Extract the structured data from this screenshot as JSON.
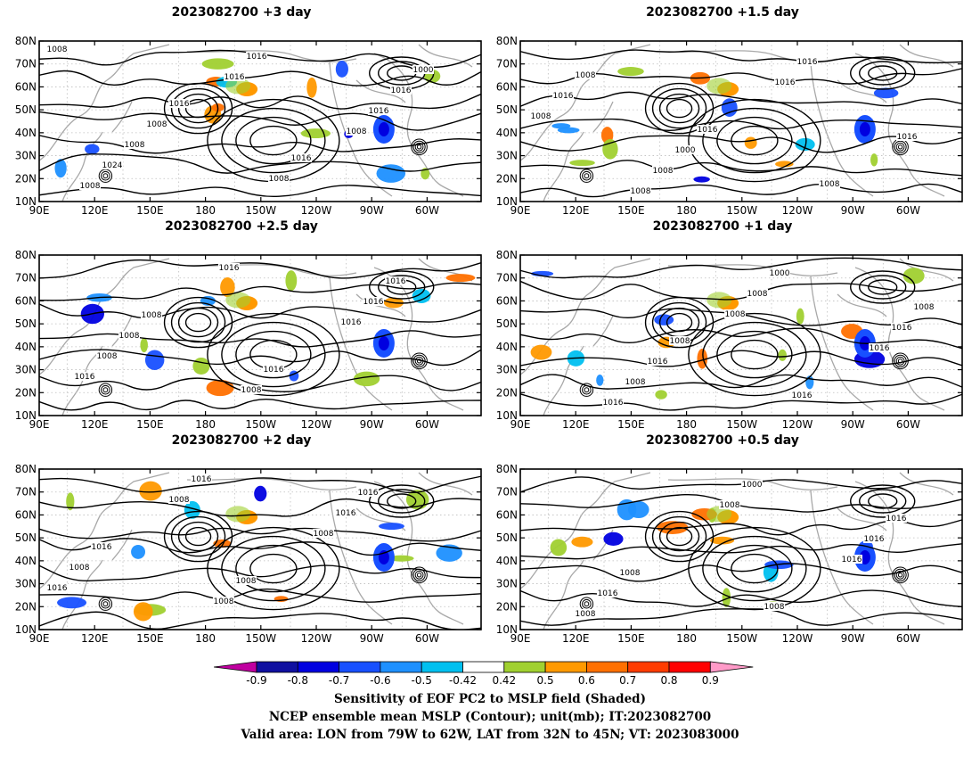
{
  "panels": [
    {
      "title": "2023082700 +3 day",
      "contour_labels": [
        "1008",
        "1016",
        "1016",
        "1000",
        "1008",
        "1008",
        "1016",
        "1008",
        "1016",
        "1016",
        "1024",
        "1016",
        "1008",
        "1008"
      ]
    },
    {
      "title": "2023082700 +1.5 day",
      "contour_labels": [
        "1008",
        "1016",
        "1008",
        "1016",
        "1000",
        "1016",
        "1008",
        "1008",
        "1016",
        "1016",
        "1008"
      ]
    },
    {
      "title": "2023082700 +2.5 day",
      "contour_labels": [
        "1008",
        "1016",
        "1016",
        "1008",
        "1008",
        "1016",
        "1008",
        "1016",
        "1016",
        "1016"
      ]
    },
    {
      "title": "2023082700 +1 day",
      "contour_labels": [
        "1008",
        "1016",
        "1008",
        "1016",
        "1000",
        "1016",
        "1008",
        "1008",
        "1016",
        "1016",
        "1008"
      ]
    },
    {
      "title": "2023082700 +2 day",
      "contour_labels": [
        "1008",
        "1016",
        "1016",
        "1008",
        "1016",
        "1008",
        "1016",
        "1008",
        "1016",
        "1008"
      ]
    },
    {
      "title": "2023082700 +0.5 day",
      "contour_labels": [
        "1008",
        "1016",
        "1008",
        "1000",
        "1016",
        "1016",
        "1008",
        "1016",
        "1008"
      ]
    }
  ],
  "map_axes": {
    "lat_labels": [
      "80N",
      "70N",
      "60N",
      "50N",
      "40N",
      "30N",
      "20N",
      "10N"
    ],
    "lon_labels": [
      "90E",
      "120E",
      "150E",
      "180",
      "150W",
      "120W",
      "90W",
      "60W"
    ]
  },
  "colorbar": {
    "labels": [
      "-0.9",
      "-0.8",
      "-0.7",
      "-0.6",
      "-0.5",
      "-0.42",
      "0.42",
      "0.5",
      "0.6",
      "0.7",
      "0.8",
      "0.9"
    ],
    "colors": [
      "#c000a0",
      "#1010a0",
      "#0000e0",
      "#1850ff",
      "#1e90ff",
      "#00c0f0",
      "#ffffff",
      "#a0d030",
      "#ff9900",
      "#ff7000",
      "#ff3c00",
      "#ff0000",
      "#ff9ac8"
    ]
  },
  "caption": {
    "line1": "Sensitivity of EOF PC2 to MSLP field (Shaded)",
    "line2": "NCEP ensemble mean MSLP (Contour); unit(mb); IT:2023082700",
    "line3": "Valid area: LON from 79W to 62W, LAT from 32N to 45N; VT: 2023083000"
  }
}
